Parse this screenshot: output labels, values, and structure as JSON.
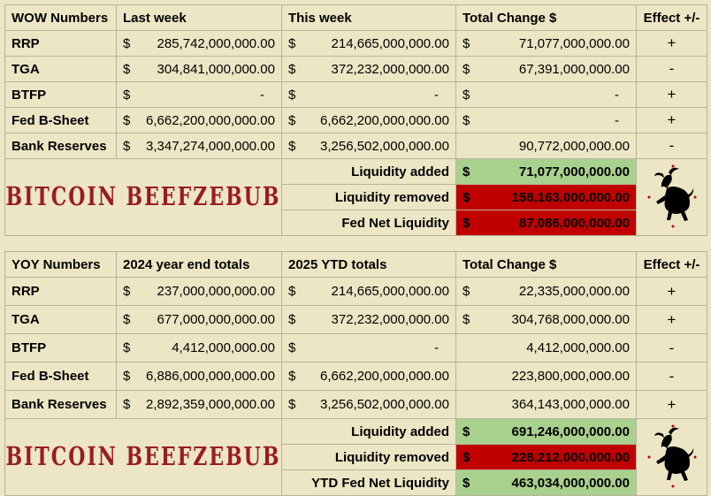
{
  "wow": {
    "headers": [
      "WOW Numbers",
      "Last week",
      "This week",
      "Total Change $",
      "Effect +/-"
    ],
    "rows": [
      {
        "label": "RRP",
        "a": "285,742,000,000.00",
        "b": "214,665,000,000.00",
        "c": "71,077,000,000.00",
        "e": "+"
      },
      {
        "label": "TGA",
        "a": "304,841,000,000.00",
        "b": "372,232,000,000.00",
        "c": "67,391,000,000.00",
        "e": "-"
      },
      {
        "label": "BTFP",
        "a": "-",
        "b": "-",
        "c": "-",
        "e": "+"
      },
      {
        "label": "Fed B-Sheet",
        "a": "6,662,200,000,000.00",
        "b": "6,662,200,000,000.00",
        "c": "-",
        "e": "+"
      },
      {
        "label": "Bank Reserves",
        "a": "3,347,274,000,000.00",
        "b": "3,256,502,000,000.00",
        "c": "90,772,000,000.00",
        "e": "-"
      }
    ],
    "summary": [
      {
        "label": "Liquidity added",
        "value": "71,077,000,000.00"
      },
      {
        "label": "Liquidity removed",
        "value": "158,163,000,000.00"
      },
      {
        "label": "Fed Net Liquidity",
        "value": "87,086,000,000.00"
      }
    ]
  },
  "yoy": {
    "headers": [
      "YOY Numbers",
      "2024 year end totals",
      "2025 YTD totals",
      "Total Change $",
      "Effect +/-"
    ],
    "rows": [
      {
        "label": "RRP",
        "a": "237,000,000,000.00",
        "b": "214,665,000,000.00",
        "c": "22,335,000,000.00",
        "e": "+"
      },
      {
        "label": "TGA",
        "a": "677,000,000,000.00",
        "b": "372,232,000,000.00",
        "c": "304,768,000,000.00",
        "e": "+"
      },
      {
        "label": "BTFP",
        "a": "4,412,000,000.00",
        "b": "-",
        "c": "4,412,000,000.00",
        "e": "-"
      },
      {
        "label": "Fed B-Sheet",
        "a": "6,886,000,000,000.00",
        "b": "6,662,200,000,000.00",
        "c": "223,800,000,000.00",
        "e": "-"
      },
      {
        "label": "Bank Reserves",
        "a": "2,892,359,000,000.00",
        "b": "3,256,502,000,000.00",
        "c": "364,143,000,000.00",
        "e": "+"
      }
    ],
    "summary": [
      {
        "label": "Liquidity added",
        "value": "691,246,000,000.00"
      },
      {
        "label": "Liquidity removed",
        "value": "228,212,000,000.00"
      },
      {
        "label": "YTD Fed Net Liquidity",
        "value": "463,034,000,000.00"
      }
    ]
  },
  "currency": "$",
  "brand": "BITCOIN BEEFZEBUB",
  "colors": {
    "green": "#a9d18e",
    "red": "#c00000",
    "brand": "#9a1b25",
    "background": "#ece6c4"
  },
  "icons": [
    "goat-logo-icon"
  ]
}
